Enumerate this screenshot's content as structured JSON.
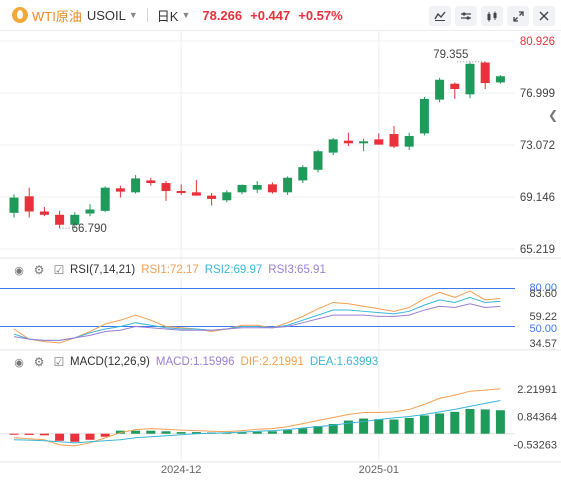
{
  "header": {
    "symbol_name": "WTI原油",
    "symbol_code": "USOIL",
    "period": "日K",
    "price": "78.266",
    "change": "+0.447",
    "change_pct": "+0.57%",
    "icons": [
      "symbol-oil-icon",
      "chevron-down-icon",
      "chart-style-icon",
      "settings-icon",
      "indicator-icon",
      "fullscreen-icon",
      "close-icon"
    ]
  },
  "colors": {
    "up": "#e8313a",
    "down": "#1e9a5a",
    "accent": "#f08a24",
    "rsi1": "#f5a052",
    "rsi2": "#3bb6d8",
    "rsi3": "#9b7fd6",
    "macd": "#9b7fd6",
    "dif": "#f5a052",
    "dea": "#3bb6d8",
    "reference_line": "#3c78f0"
  },
  "rsi_header": {
    "name": "RSI(7,14,21)",
    "rsi1_label": "RSI1:72.17",
    "rsi2_label": "RSI2:69.97",
    "rsi3_label": "RSI3:65.91"
  },
  "macd_header": {
    "name": "MACD(12,26,9)",
    "macd_label": "MACD:1.15996",
    "dif_label": "DIF:2.21991",
    "dea_label": "DEA:1.63993"
  },
  "chart_data": {
    "type": "candlestick",
    "price_axis": {
      "ticks": [
        "80.926",
        "76.999",
        "73.072",
        "69.146",
        "65.219"
      ],
      "min": 65.219,
      "max": 80.926
    },
    "annotations": [
      {
        "text": "79.355",
        "label": "high"
      },
      {
        "text": "66.790",
        "label": "low"
      }
    ],
    "x_axis_labels": [
      "2024-12",
      "2025-01"
    ],
    "candles": [
      {
        "o": 67.95,
        "h": 69.35,
        "l": 67.6,
        "c": 69.1
      },
      {
        "o": 69.2,
        "h": 69.85,
        "l": 67.6,
        "c": 68.05
      },
      {
        "o": 68.05,
        "h": 68.4,
        "l": 67.7,
        "c": 67.8
      },
      {
        "o": 67.8,
        "h": 68.1,
        "l": 66.79,
        "c": 67.05
      },
      {
        "o": 67.05,
        "h": 68.0,
        "l": 66.8,
        "c": 67.8
      },
      {
        "o": 67.9,
        "h": 68.6,
        "l": 67.7,
        "c": 68.2
      },
      {
        "o": 68.1,
        "h": 69.95,
        "l": 68.0,
        "c": 69.85
      },
      {
        "o": 69.8,
        "h": 70.0,
        "l": 69.1,
        "c": 69.55
      },
      {
        "o": 69.5,
        "h": 70.8,
        "l": 69.4,
        "c": 70.55
      },
      {
        "o": 70.4,
        "h": 70.6,
        "l": 70.0,
        "c": 70.2
      },
      {
        "o": 70.2,
        "h": 70.35,
        "l": 68.85,
        "c": 69.6
      },
      {
        "o": 69.6,
        "h": 70.1,
        "l": 69.3,
        "c": 69.45
      },
      {
        "o": 69.5,
        "h": 70.45,
        "l": 69.25,
        "c": 69.25
      },
      {
        "o": 69.25,
        "h": 69.45,
        "l": 68.5,
        "c": 69.0
      },
      {
        "o": 68.9,
        "h": 69.65,
        "l": 68.75,
        "c": 69.5
      },
      {
        "o": 69.5,
        "h": 70.1,
        "l": 69.35,
        "c": 70.05
      },
      {
        "o": 69.7,
        "h": 70.35,
        "l": 69.45,
        "c": 70.05
      },
      {
        "o": 70.1,
        "h": 70.25,
        "l": 69.4,
        "c": 69.5
      },
      {
        "o": 69.5,
        "h": 70.7,
        "l": 69.3,
        "c": 70.6
      },
      {
        "o": 70.4,
        "h": 71.55,
        "l": 70.2,
        "c": 71.4
      },
      {
        "o": 71.2,
        "h": 72.7,
        "l": 71.0,
        "c": 72.6
      },
      {
        "o": 72.5,
        "h": 73.6,
        "l": 72.3,
        "c": 73.5
      },
      {
        "o": 73.4,
        "h": 74.0,
        "l": 73.0,
        "c": 73.2
      },
      {
        "o": 73.2,
        "h": 73.55,
        "l": 72.6,
        "c": 73.35
      },
      {
        "o": 73.5,
        "h": 73.95,
        "l": 73.1,
        "c": 73.1
      },
      {
        "o": 73.9,
        "h": 74.5,
        "l": 72.85,
        "c": 72.95
      },
      {
        "o": 72.95,
        "h": 74.0,
        "l": 72.7,
        "c": 73.75
      },
      {
        "o": 73.95,
        "h": 76.7,
        "l": 73.8,
        "c": 76.55
      },
      {
        "o": 76.5,
        "h": 78.15,
        "l": 76.3,
        "c": 78.0
      },
      {
        "o": 77.7,
        "h": 77.8,
        "l": 76.55,
        "c": 77.3
      },
      {
        "o": 76.9,
        "h": 79.3,
        "l": 76.6,
        "c": 79.2
      },
      {
        "o": 79.3,
        "h": 79.355,
        "l": 77.3,
        "c": 77.75
      },
      {
        "o": 77.8,
        "h": 78.35,
        "l": 77.7,
        "c": 78.266
      }
    ],
    "rsi": {
      "axis_ticks": [
        "80.00",
        "83.60",
        "59.22",
        "50.00",
        "34.57"
      ],
      "min": 34.57,
      "max": 83.6,
      "levels": [
        80,
        50
      ],
      "rsi1": [
        48,
        40,
        38,
        37,
        41,
        46,
        52,
        55,
        59,
        55,
        50,
        49,
        48,
        46,
        48,
        51,
        51,
        49,
        53,
        58,
        64,
        69,
        68,
        66,
        64,
        62,
        65,
        72,
        77,
        73,
        78,
        71,
        72.17
      ],
      "rsi2": [
        44,
        40,
        39,
        39,
        41,
        45,
        48,
        50,
        53,
        51,
        49,
        48,
        48,
        47,
        48,
        50,
        50,
        49,
        51,
        55,
        59,
        63,
        63,
        62,
        61,
        60,
        62,
        67,
        71,
        69,
        73,
        69,
        69.97
      ],
      "rsi3": [
        42,
        40,
        39,
        39,
        41,
        43,
        46,
        47,
        50,
        49,
        48,
        47,
        47,
        47,
        48,
        49,
        49,
        49,
        50,
        53,
        56,
        59,
        59,
        59,
        58,
        58,
        59,
        63,
        66,
        65,
        68,
        65,
        65.91
      ]
    },
    "macd": {
      "axis_ticks": [
        "2.21991",
        "0.84364",
        "-0.53263"
      ],
      "min": -1.2,
      "max": 2.9,
      "macd": [
        -0.05,
        -0.06,
        -0.08,
        -0.35,
        -0.4,
        -0.3,
        -0.15,
        0.15,
        0.15,
        0.15,
        0.12,
        0.08,
        0.08,
        0.06,
        0.05,
        0.08,
        0.1,
        0.12,
        0.18,
        0.27,
        0.38,
        0.48,
        0.65,
        0.75,
        0.72,
        0.7,
        0.78,
        0.9,
        1.0,
        1.08,
        1.22,
        1.2,
        1.15996
      ],
      "dif": [
        -0.2,
        -0.25,
        -0.3,
        -0.55,
        -0.6,
        -0.45,
        -0.2,
        0.05,
        0.2,
        0.25,
        0.22,
        0.18,
        0.15,
        0.12,
        0.1,
        0.15,
        0.22,
        0.25,
        0.35,
        0.5,
        0.65,
        0.8,
        0.95,
        1.05,
        1.05,
        1.08,
        1.2,
        1.45,
        1.75,
        1.9,
        2.1,
        2.15,
        2.21991
      ],
      "dea": [
        -0.3,
        -0.32,
        -0.35,
        -0.4,
        -0.45,
        -0.4,
        -0.35,
        -0.3,
        -0.2,
        -0.15,
        -0.1,
        -0.05,
        0.0,
        0.02,
        0.05,
        0.08,
        0.12,
        0.15,
        0.2,
        0.28,
        0.35,
        0.42,
        0.52,
        0.6,
        0.7,
        0.78,
        0.85,
        0.95,
        1.08,
        1.2,
        1.35,
        1.5,
        1.63993
      ]
    }
  }
}
